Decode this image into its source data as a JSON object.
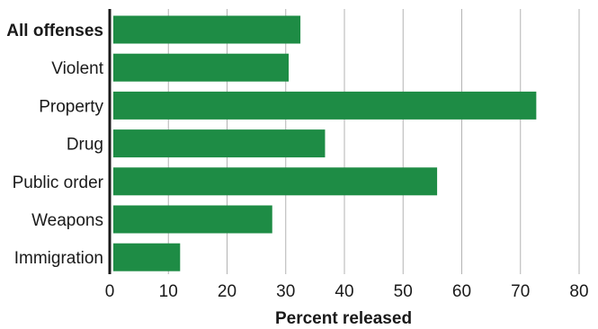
{
  "chart_data": {
    "type": "bar",
    "orientation": "horizontal",
    "categories": [
      "All offenses",
      "Violent",
      "Property",
      "Drug",
      "Public order",
      "Weapons",
      "Immigration"
    ],
    "bold_categories": [
      "All offenses"
    ],
    "values": [
      32.5,
      30.5,
      72.7,
      36.7,
      55.8,
      27.7,
      12.0
    ],
    "xlabel": "Percent released",
    "xlim": [
      0,
      80
    ],
    "xticks": [
      0,
      10,
      20,
      30,
      40,
      50,
      60,
      70,
      80
    ],
    "grid": "vertical",
    "bar_color": "#1e8c45",
    "grid_color": "#b3b3b3"
  }
}
